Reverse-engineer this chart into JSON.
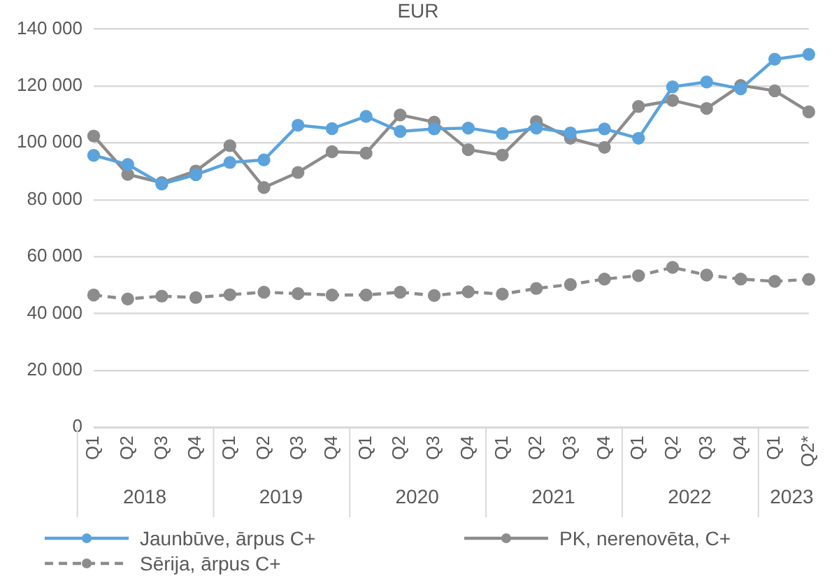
{
  "chart_data": {
    "type": "line",
    "title": "EUR",
    "categories": [
      "Q1",
      "Q2",
      "Q3",
      "Q4",
      "Q1",
      "Q2",
      "Q3",
      "Q4",
      "Q1",
      "Q2",
      "Q3",
      "Q4",
      "Q1",
      "Q2",
      "Q3",
      "Q4",
      "Q1",
      "Q2",
      "Q3",
      "Q4",
      "Q1",
      "Q2*"
    ],
    "annotations": [
      "2018",
      "2019",
      "2020",
      "2021",
      "2022",
      "2023"
    ],
    "series": [
      {
        "name": "Jaunbūve, ārpus C+",
        "color": "#5ba3dc",
        "line_style": "solid",
        "values": [
          95600,
          92400,
          85500,
          88800,
          93100,
          94000,
          106200,
          105000,
          109300,
          104000,
          104900,
          105200,
          103300,
          105200,
          103500,
          104900,
          101600,
          119700,
          121400,
          119000,
          129400,
          131100
        ]
      },
      {
        "name": "PK, nerenovēta, C+",
        "color": "#8c8c8c",
        "line_style": "solid",
        "values": [
          102400,
          88900,
          86000,
          90100,
          99000,
          84300,
          89600,
          96900,
          96400,
          109800,
          107300,
          97600,
          95700,
          107500,
          101600,
          98400,
          112800,
          114900,
          112100,
          120200,
          118300,
          110900
        ]
      },
      {
        "name": "Sērija, ārpus C+",
        "color": "#8c8c8c",
        "line_style": "dashed",
        "values": [
          46500,
          45100,
          46100,
          45600,
          46600,
          47500,
          47000,
          46500,
          46500,
          47500,
          46300,
          47600,
          46800,
          48800,
          50200,
          52100,
          53300,
          56200,
          53500,
          52100,
          51300,
          52000
        ]
      }
    ],
    "ylim": [
      0,
      140000
    ],
    "yticks": [
      {
        "value": 0,
        "label": "0"
      },
      {
        "value": 20000,
        "label": "20 000"
      },
      {
        "value": 40000,
        "label": "40 000"
      },
      {
        "value": 60000,
        "label": "60 000"
      },
      {
        "value": 80000,
        "label": "80 000"
      },
      {
        "value": 100000,
        "label": "100 000"
      },
      {
        "value": 120000,
        "label": "120 000"
      },
      {
        "value": 140000,
        "label": "140 000"
      }
    ],
    "grid": "y",
    "legend": "bottom",
    "marker": "circle"
  }
}
